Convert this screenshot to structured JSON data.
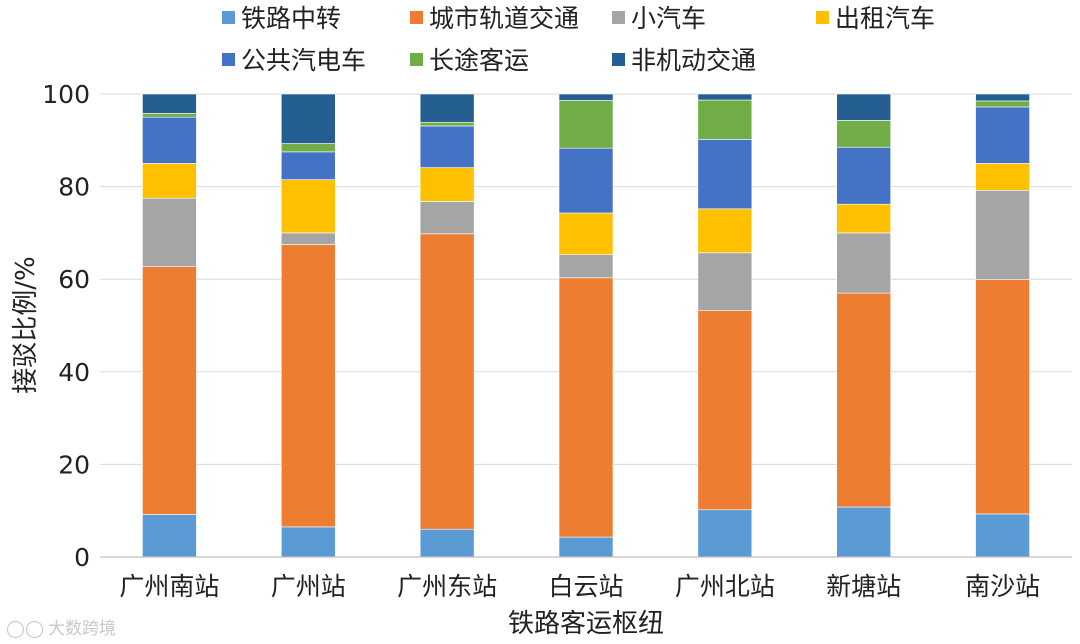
{
  "chart_data": {
    "type": "bar",
    "stacked": true,
    "title": "",
    "xlabel": "铁路客运枢纽",
    "ylabel": "接驳比例/%",
    "ylim": [
      0,
      100
    ],
    "yticks": [
      0,
      20,
      40,
      60,
      80,
      100
    ],
    "grid": true,
    "legend_position": "top",
    "categories": [
      "广州南站",
      "广州站",
      "广州东站",
      "白云站",
      "广州北站",
      "新塘站",
      "南沙站"
    ],
    "series": [
      {
        "name": "铁路中转",
        "color": "#5B9BD5",
        "values": [
          9.2,
          6.5,
          6.0,
          4.3,
          10.2,
          10.8,
          9.3
        ]
      },
      {
        "name": "城市轨道交通",
        "color": "#ED7D31",
        "values": [
          53.5,
          61.0,
          63.8,
          56.0,
          43.0,
          46.2,
          50.6
        ]
      },
      {
        "name": "小汽车",
        "color": "#A5A5A5",
        "values": [
          14.8,
          2.5,
          7.0,
          5.0,
          12.5,
          13.0,
          19.3
        ]
      },
      {
        "name": "出租汽车",
        "color": "#FFC000",
        "values": [
          7.5,
          11.5,
          7.3,
          9.0,
          9.5,
          6.2,
          5.8
        ]
      },
      {
        "name": "公共汽电车",
        "color": "#4472C4",
        "values": [
          10.0,
          6.0,
          9.0,
          14.0,
          15.0,
          12.3,
          12.2
        ]
      },
      {
        "name": "长途客运",
        "color": "#70AD47",
        "values": [
          0.8,
          1.8,
          0.8,
          10.3,
          8.5,
          5.8,
          1.3
        ]
      },
      {
        "name": "非机动交通",
        "color": "#255E91",
        "values": [
          4.2,
          10.7,
          6.1,
          1.4,
          1.3,
          5.7,
          1.5
        ]
      }
    ]
  },
  "watermark": {
    "text": "大数跨境"
  }
}
